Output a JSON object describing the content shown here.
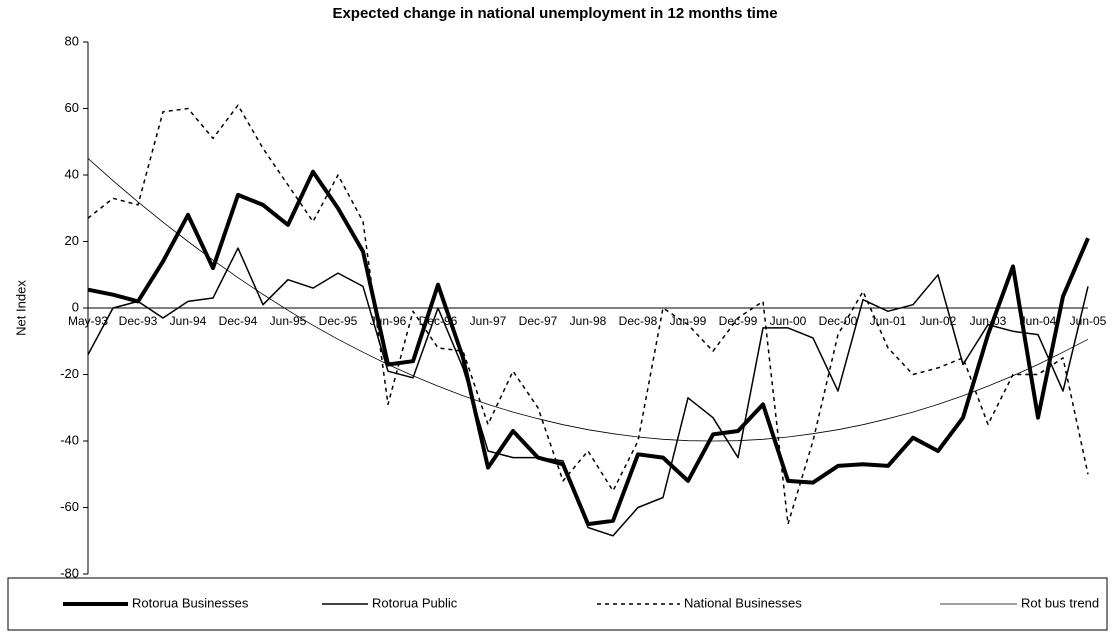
{
  "chart_data": {
    "type": "line",
    "title": "Expected change in national unemployment in 12 months time",
    "y_label": "Net Index",
    "categories": [
      "May-93",
      null,
      "Dec-93",
      null,
      "Jun-94",
      null,
      "Dec-94",
      null,
      "Jun-95",
      null,
      "Dec-95",
      null,
      "Jun-96",
      null,
      "Dec-96",
      null,
      "Jun-97",
      null,
      "Dec-97",
      null,
      "Jun-98",
      null,
      "Dec-98",
      null,
      "Jun-99",
      null,
      "Dec-99",
      null,
      "Jun-00",
      null,
      "Dec-00",
      null,
      "Jun-01",
      null,
      "Jun-02",
      null,
      "Jun-03",
      null,
      "Jun-04",
      null,
      "Jun-05"
    ],
    "ylim": [
      -80,
      80
    ],
    "yticks": [
      -80,
      -60,
      -40,
      -20,
      0,
      20,
      40,
      60,
      80
    ],
    "legend": "bottom",
    "series": [
      {
        "name": "Rotorua Businesses",
        "color": "#000000",
        "line_width": 4,
        "dash": "solid",
        "values": [
          5.5,
          4,
          2,
          14,
          28,
          12,
          34,
          31,
          25,
          41,
          30,
          17,
          -17,
          -16,
          7,
          -15,
          -48,
          -37,
          -45,
          -47,
          -65,
          -64,
          -44,
          -45,
          -52,
          -38,
          -37,
          -29,
          -52,
          -52.5,
          -47.5,
          -47,
          -47.5,
          -39,
          -43,
          -33,
          -8,
          12.5,
          -33,
          3.5,
          21
        ]
      },
      {
        "name": "Rotorua Public",
        "color": "#000000",
        "line_width": 1.5,
        "dash": "solid",
        "values": [
          -14,
          0,
          2,
          -3,
          2,
          3,
          18,
          1,
          8.5,
          6,
          10.5,
          6.5,
          -19,
          -21,
          0,
          -18,
          -43,
          -45,
          -45,
          -46,
          -66,
          -68.5,
          -60,
          -57,
          -27,
          -33,
          -45,
          -6,
          -6,
          -9,
          -25,
          2.5,
          -1,
          1,
          10,
          -17,
          -5,
          -7,
          -8,
          -25,
          6.5
        ]
      },
      {
        "name": "National Businesses",
        "color": "#000000",
        "line_width": 1.5,
        "dash": "dashed",
        "values": [
          27,
          33,
          31,
          59,
          60,
          51,
          61,
          48,
          37,
          26,
          40,
          26,
          -29,
          -1,
          -12,
          -13,
          -35,
          -19,
          -30,
          -52,
          -43,
          -55,
          -40,
          0,
          -5,
          -13,
          -3,
          2,
          -65,
          -40,
          -8,
          5,
          -12,
          -20,
          -18,
          -15,
          -35,
          -20,
          -20,
          -15,
          -50
        ]
      },
      {
        "name": "Rot bus trend",
        "color": "#000000",
        "line_width": 0.8,
        "dash": "solid",
        "values": [
          45.0,
          38.3,
          31.9,
          25.8,
          20.0,
          14.4,
          9.1,
          4.1,
          -0.7,
          -5.2,
          -9.4,
          -13.3,
          -17.0,
          -20.4,
          -23.5,
          -26.4,
          -29.0,
          -31.3,
          -33.3,
          -35.1,
          -36.6,
          -37.8,
          -38.8,
          -39.5,
          -39.9,
          -40,
          -39.9,
          -39.5,
          -38.8,
          -37.8,
          -36.6,
          -35.1,
          -33.3,
          -31.3,
          -29.0,
          -26.4,
          -23.5,
          -20.4,
          -17.0,
          -13.3,
          -9.4
        ]
      }
    ]
  }
}
